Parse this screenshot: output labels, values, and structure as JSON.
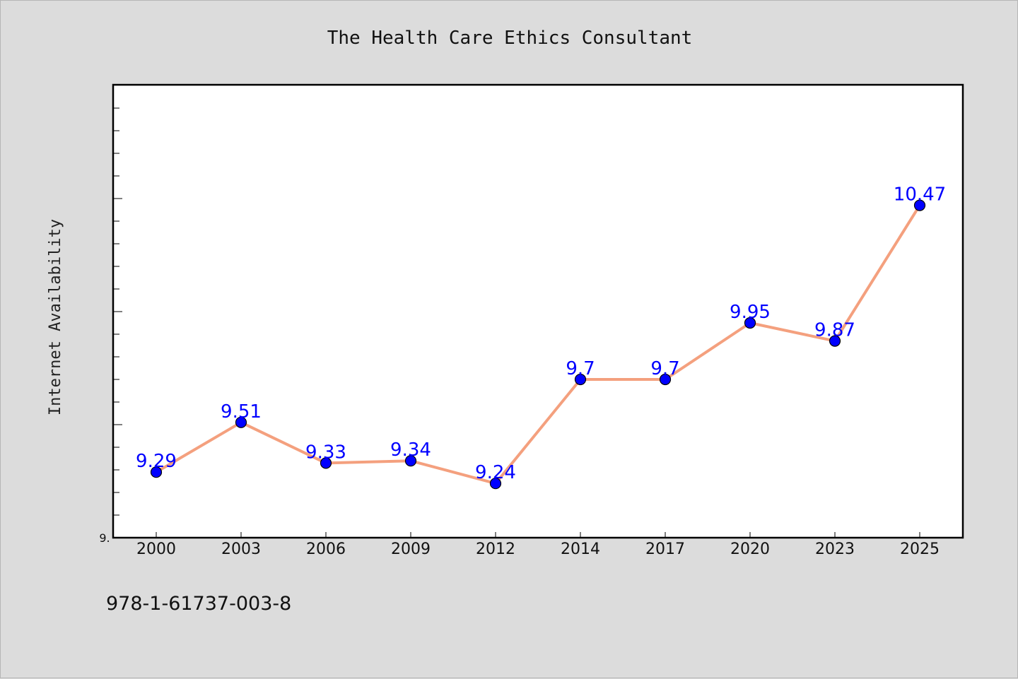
{
  "chart_data": {
    "type": "line",
    "title": "The Health Care Ethics Consultant",
    "xlabel": "",
    "ylabel": "Internet Availability",
    "categories": [
      "2000",
      "2003",
      "2006",
      "2009",
      "2012",
      "2014",
      "2017",
      "2020",
      "2023",
      "2025"
    ],
    "series": [
      {
        "values": [
          9.29,
          9.51,
          9.33,
          9.34,
          9.24,
          9.7,
          9.7,
          9.95,
          9.87,
          10.47
        ],
        "labels": [
          "9.29",
          "9.51",
          "9.33",
          "9.34",
          "9.24",
          "9.7",
          "9.7",
          "9.95",
          "9.87",
          "10.47"
        ]
      }
    ],
    "ylim": [
      9.0,
      11.0
    ],
    "y_tick_labels": [
      "9."
    ],
    "grid": false,
    "legend": "none"
  },
  "footnote": "978-1-61737-003-8",
  "colors": {
    "background": "#dcdcdc",
    "plot_background": "#ffffff",
    "line": "#f4a07e",
    "marker": "#0000ff",
    "data_label": "#0000ff"
  }
}
